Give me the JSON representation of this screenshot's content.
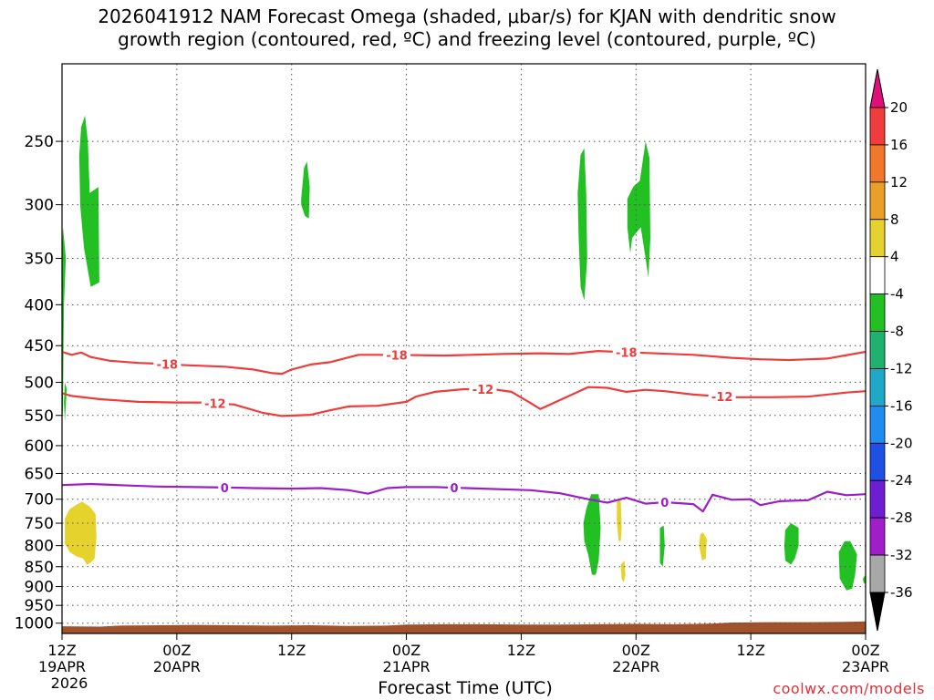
{
  "chart_data": {
    "type": "heatmap",
    "title_line1": "2026041912 NAM Forecast Omega (shaded, μbar/s) for KJAN with dendritic snow",
    "title_line2": "growth region (contoured, red, ºC) and freezing level (contoured, purple, ºC)",
    "xlabel": "Forecast Time (UTC)",
    "credit": "coolwx.com/models",
    "y_axis": {
      "scale": "log-pressure",
      "inverted": true,
      "ylim": [
        1030,
        200
      ],
      "ticks": [
        250,
        300,
        350,
        400,
        450,
        500,
        550,
        600,
        650,
        700,
        750,
        800,
        850,
        900,
        950,
        1000
      ]
    },
    "x_axis": {
      "xlim_hours": [
        0,
        84
      ],
      "ticks": [
        {
          "h": 0,
          "label1": "12Z",
          "label2": "19APR",
          "label3": "2026"
        },
        {
          "h": 12,
          "label1": "00Z",
          "label2": "20APR",
          "label3": ""
        },
        {
          "h": 24,
          "label1": "12Z",
          "label2": "",
          "label3": ""
        },
        {
          "h": 36,
          "label1": "00Z",
          "label2": "21APR",
          "label3": ""
        },
        {
          "h": 48,
          "label1": "12Z",
          "label2": "",
          "label3": ""
        },
        {
          "h": 60,
          "label1": "00Z",
          "label2": "22APR",
          "label3": ""
        },
        {
          "h": 72,
          "label1": "12Z",
          "label2": "",
          "label3": ""
        },
        {
          "h": 84,
          "label1": "00Z",
          "label2": "23APR",
          "label3": ""
        }
      ]
    },
    "grid": true,
    "colorbar": {
      "labels": [
        "20",
        "16",
        "12",
        "8",
        "4",
        "-4",
        "-8",
        "-12",
        "-16",
        "-20",
        "-24",
        "-28",
        "-32",
        "-36"
      ],
      "colors": [
        "#f03c3c",
        "#f07828",
        "#e8a028",
        "#e6d22d",
        "#ffffff",
        "#22c022",
        "#20b070",
        "#20a8c8",
        "#1e8cf0",
        "#1e50e6",
        "#6e1ed2",
        "#a01ec8",
        "#a8a8a8"
      ],
      "top_arrow": "#e0107a",
      "bottom_arrow": "#000000"
    },
    "contours": [
      {
        "level": "-18",
        "color": "#ee3b3b",
        "labels_at_h": [
          11,
          35,
          59
        ],
        "points": [
          [
            0,
            458
          ],
          [
            1,
            462
          ],
          [
            2,
            459
          ],
          [
            3,
            465
          ],
          [
            5,
            470
          ],
          [
            8,
            473
          ],
          [
            10,
            474
          ],
          [
            13,
            476
          ],
          [
            17,
            478
          ],
          [
            20,
            482
          ],
          [
            22,
            487
          ],
          [
            23,
            488
          ],
          [
            24,
            482
          ],
          [
            26,
            475
          ],
          [
            28,
            472
          ],
          [
            31,
            462
          ],
          [
            35,
            462
          ],
          [
            40,
            463
          ],
          [
            46,
            461
          ],
          [
            50,
            460
          ],
          [
            53,
            461
          ],
          [
            56,
            457
          ],
          [
            60,
            459
          ],
          [
            66,
            462
          ],
          [
            70,
            466
          ],
          [
            73,
            468
          ],
          [
            76,
            469
          ],
          [
            80,
            467
          ],
          [
            84,
            458
          ]
        ]
      },
      {
        "level": "-12",
        "color": "#ee3b3b",
        "labels_at_h": [
          16,
          44,
          69
        ],
        "points": [
          [
            0,
            516
          ],
          [
            1,
            520
          ],
          [
            4,
            525
          ],
          [
            8,
            529
          ],
          [
            12,
            530
          ],
          [
            15,
            530
          ],
          [
            18,
            533
          ],
          [
            21,
            546
          ],
          [
            23,
            551
          ],
          [
            26,
            549
          ],
          [
            28,
            542
          ],
          [
            30,
            536
          ],
          [
            33,
            535
          ],
          [
            36,
            529
          ],
          [
            37,
            521
          ],
          [
            39,
            514
          ],
          [
            42,
            510
          ],
          [
            45,
            510
          ],
          [
            47,
            514
          ],
          [
            49,
            531
          ],
          [
            50,
            540
          ],
          [
            53,
            520
          ],
          [
            55,
            507
          ],
          [
            57,
            508
          ],
          [
            59,
            514
          ],
          [
            61,
            511
          ],
          [
            63,
            513
          ],
          [
            66,
            518
          ],
          [
            70,
            522
          ],
          [
            74,
            522
          ],
          [
            78,
            521
          ],
          [
            82,
            515
          ],
          [
            84,
            513
          ]
        ]
      },
      {
        "level": "0",
        "color": "#9b1ec8",
        "labels_at_h": [
          17,
          41,
          63
        ],
        "points": [
          [
            0,
            672
          ],
          [
            3,
            670
          ],
          [
            7,
            673
          ],
          [
            10,
            675
          ],
          [
            14,
            676
          ],
          [
            18,
            677
          ],
          [
            20,
            678
          ],
          [
            24,
            679
          ],
          [
            27,
            678
          ],
          [
            30,
            682
          ],
          [
            32,
            689
          ],
          [
            34,
            678
          ],
          [
            36,
            676
          ],
          [
            39,
            676
          ],
          [
            44,
            679
          ],
          [
            49,
            682
          ],
          [
            52,
            688
          ],
          [
            55,
            700
          ],
          [
            57,
            707
          ],
          [
            59,
            697
          ],
          [
            61,
            709
          ],
          [
            63,
            706
          ],
          [
            66,
            710
          ],
          [
            67,
            725
          ],
          [
            68,
            691
          ],
          [
            70,
            701
          ],
          [
            72,
            700
          ],
          [
            73,
            712
          ],
          [
            75,
            704
          ],
          [
            78,
            702
          ],
          [
            80,
            685
          ],
          [
            82,
            692
          ],
          [
            84,
            690
          ]
        ]
      }
    ],
    "omega_areas": [
      {
        "color": "#22c022",
        "points": [
          [
            0,
            350
          ],
          [
            0.1,
            320
          ],
          [
            0.4,
            350
          ],
          [
            0.2,
            400
          ],
          [
            0.1,
            540
          ],
          [
            0,
            560
          ]
        ]
      },
      {
        "color": "#22c022",
        "points": [
          [
            0.3,
            500
          ],
          [
            0.5,
            510
          ],
          [
            0.3,
            560
          ],
          [
            0.2,
            530
          ]
        ]
      },
      {
        "color": "#22c022",
        "points": [
          [
            1.8,
            260
          ],
          [
            2.0,
            240
          ],
          [
            2.4,
            232
          ],
          [
            2.7,
            250
          ],
          [
            2.9,
            290
          ],
          [
            3.8,
            285
          ],
          [
            3.9,
            375
          ],
          [
            3.0,
            380
          ],
          [
            2.3,
            340
          ],
          [
            1.9,
            300
          ]
        ]
      },
      {
        "color": "#22c022",
        "points": [
          [
            25.0,
            295
          ],
          [
            25.3,
            270
          ],
          [
            25.6,
            265
          ],
          [
            25.9,
            285
          ],
          [
            25.8,
            312
          ],
          [
            25.4,
            310
          ],
          [
            25.0,
            300
          ]
        ]
      },
      {
        "color": "#22c022",
        "points": [
          [
            53.9,
            290
          ],
          [
            54.2,
            260
          ],
          [
            54.6,
            255
          ],
          [
            54.8,
            290
          ],
          [
            54.9,
            350
          ],
          [
            54.6,
            395
          ],
          [
            54.2,
            380
          ],
          [
            54.0,
            330
          ]
        ]
      },
      {
        "color": "#22c022",
        "points": [
          [
            59.1,
            295
          ],
          [
            59.7,
            285
          ],
          [
            60.4,
            280
          ],
          [
            61.0,
            250
          ],
          [
            61.4,
            262
          ],
          [
            61.5,
            330
          ],
          [
            61.3,
            370
          ],
          [
            61.0,
            350
          ],
          [
            60.5,
            320
          ],
          [
            59.6,
            330
          ],
          [
            59.4,
            345
          ],
          [
            59.1,
            320
          ]
        ]
      },
      {
        "color": "#22c022",
        "points": [
          [
            54.5,
            750
          ],
          [
            54.8,
            720
          ],
          [
            55.3,
            690
          ],
          [
            56.1,
            690
          ],
          [
            56.3,
            760
          ],
          [
            56.1,
            835
          ],
          [
            55.8,
            870
          ],
          [
            55.4,
            870
          ],
          [
            55.0,
            820
          ],
          [
            54.6,
            790
          ]
        ]
      },
      {
        "color": "#22c022",
        "points": [
          [
            62.5,
            760
          ],
          [
            62.9,
            755
          ],
          [
            63.0,
            800
          ],
          [
            62.8,
            850
          ],
          [
            62.5,
            840
          ]
        ]
      },
      {
        "color": "#22c022",
        "points": [
          [
            75.6,
            765
          ],
          [
            76.2,
            750
          ],
          [
            77.0,
            760
          ],
          [
            77.0,
            800
          ],
          [
            76.6,
            830
          ],
          [
            76.2,
            845
          ],
          [
            75.6,
            835
          ],
          [
            75.5,
            800
          ]
        ]
      },
      {
        "color": "#22c022",
        "points": [
          [
            81.2,
            815
          ],
          [
            81.8,
            790
          ],
          [
            82.4,
            790
          ],
          [
            83.1,
            820
          ],
          [
            82.9,
            870
          ],
          [
            82.6,
            905
          ],
          [
            82.0,
            910
          ],
          [
            81.3,
            880
          ]
        ]
      },
      {
        "color": "#22c022",
        "points": [
          [
            83.7,
            880
          ],
          [
            84,
            870
          ],
          [
            84,
            895
          ],
          [
            83.8,
            890
          ]
        ]
      },
      {
        "color": "#e6d22d",
        "points": [
          [
            0.3,
            740
          ],
          [
            0.8,
            720
          ],
          [
            1.6,
            710
          ],
          [
            2.1,
            705
          ],
          [
            2.9,
            715
          ],
          [
            3.5,
            730
          ],
          [
            3.6,
            780
          ],
          [
            3.4,
            830
          ],
          [
            3.0,
            840
          ],
          [
            2.6,
            845
          ],
          [
            2.2,
            830
          ],
          [
            1.5,
            825
          ],
          [
            0.8,
            815
          ],
          [
            0.3,
            795
          ]
        ]
      },
      {
        "color": "#e6d22d",
        "points": [
          [
            58.0,
            705
          ],
          [
            58.4,
            700
          ],
          [
            58.5,
            760
          ],
          [
            58.4,
            790
          ],
          [
            58.2,
            790
          ],
          [
            58.0,
            750
          ]
        ]
      },
      {
        "color": "#e6d22d",
        "points": [
          [
            58.4,
            845
          ],
          [
            58.8,
            835
          ],
          [
            58.9,
            870
          ],
          [
            58.7,
            890
          ],
          [
            58.5,
            880
          ]
        ]
      },
      {
        "color": "#e6d22d",
        "points": [
          [
            66.7,
            775
          ],
          [
            67.0,
            770
          ],
          [
            67.4,
            785
          ],
          [
            67.3,
            830
          ],
          [
            66.9,
            835
          ],
          [
            66.6,
            800
          ]
        ]
      }
    ],
    "terrain": {
      "color": "#a0522d",
      "top_points": [
        [
          0,
          1009
        ],
        [
          4,
          1010
        ],
        [
          6,
          1007
        ],
        [
          10,
          1006
        ],
        [
          14,
          1005
        ],
        [
          18,
          1006
        ],
        [
          22,
          1007
        ],
        [
          26,
          1006
        ],
        [
          30,
          1008
        ],
        [
          34,
          1007
        ],
        [
          36,
          1004
        ],
        [
          40,
          1003
        ],
        [
          44,
          1003
        ],
        [
          48,
          1004
        ],
        [
          52,
          1004
        ],
        [
          56,
          1003
        ],
        [
          60,
          1002
        ],
        [
          64,
          1003
        ],
        [
          68,
          1001
        ],
        [
          70,
          998
        ],
        [
          74,
          997
        ],
        [
          78,
          997
        ],
        [
          82,
          996
        ],
        [
          84,
          995
        ]
      ],
      "bottom_pressure": 1030
    }
  }
}
